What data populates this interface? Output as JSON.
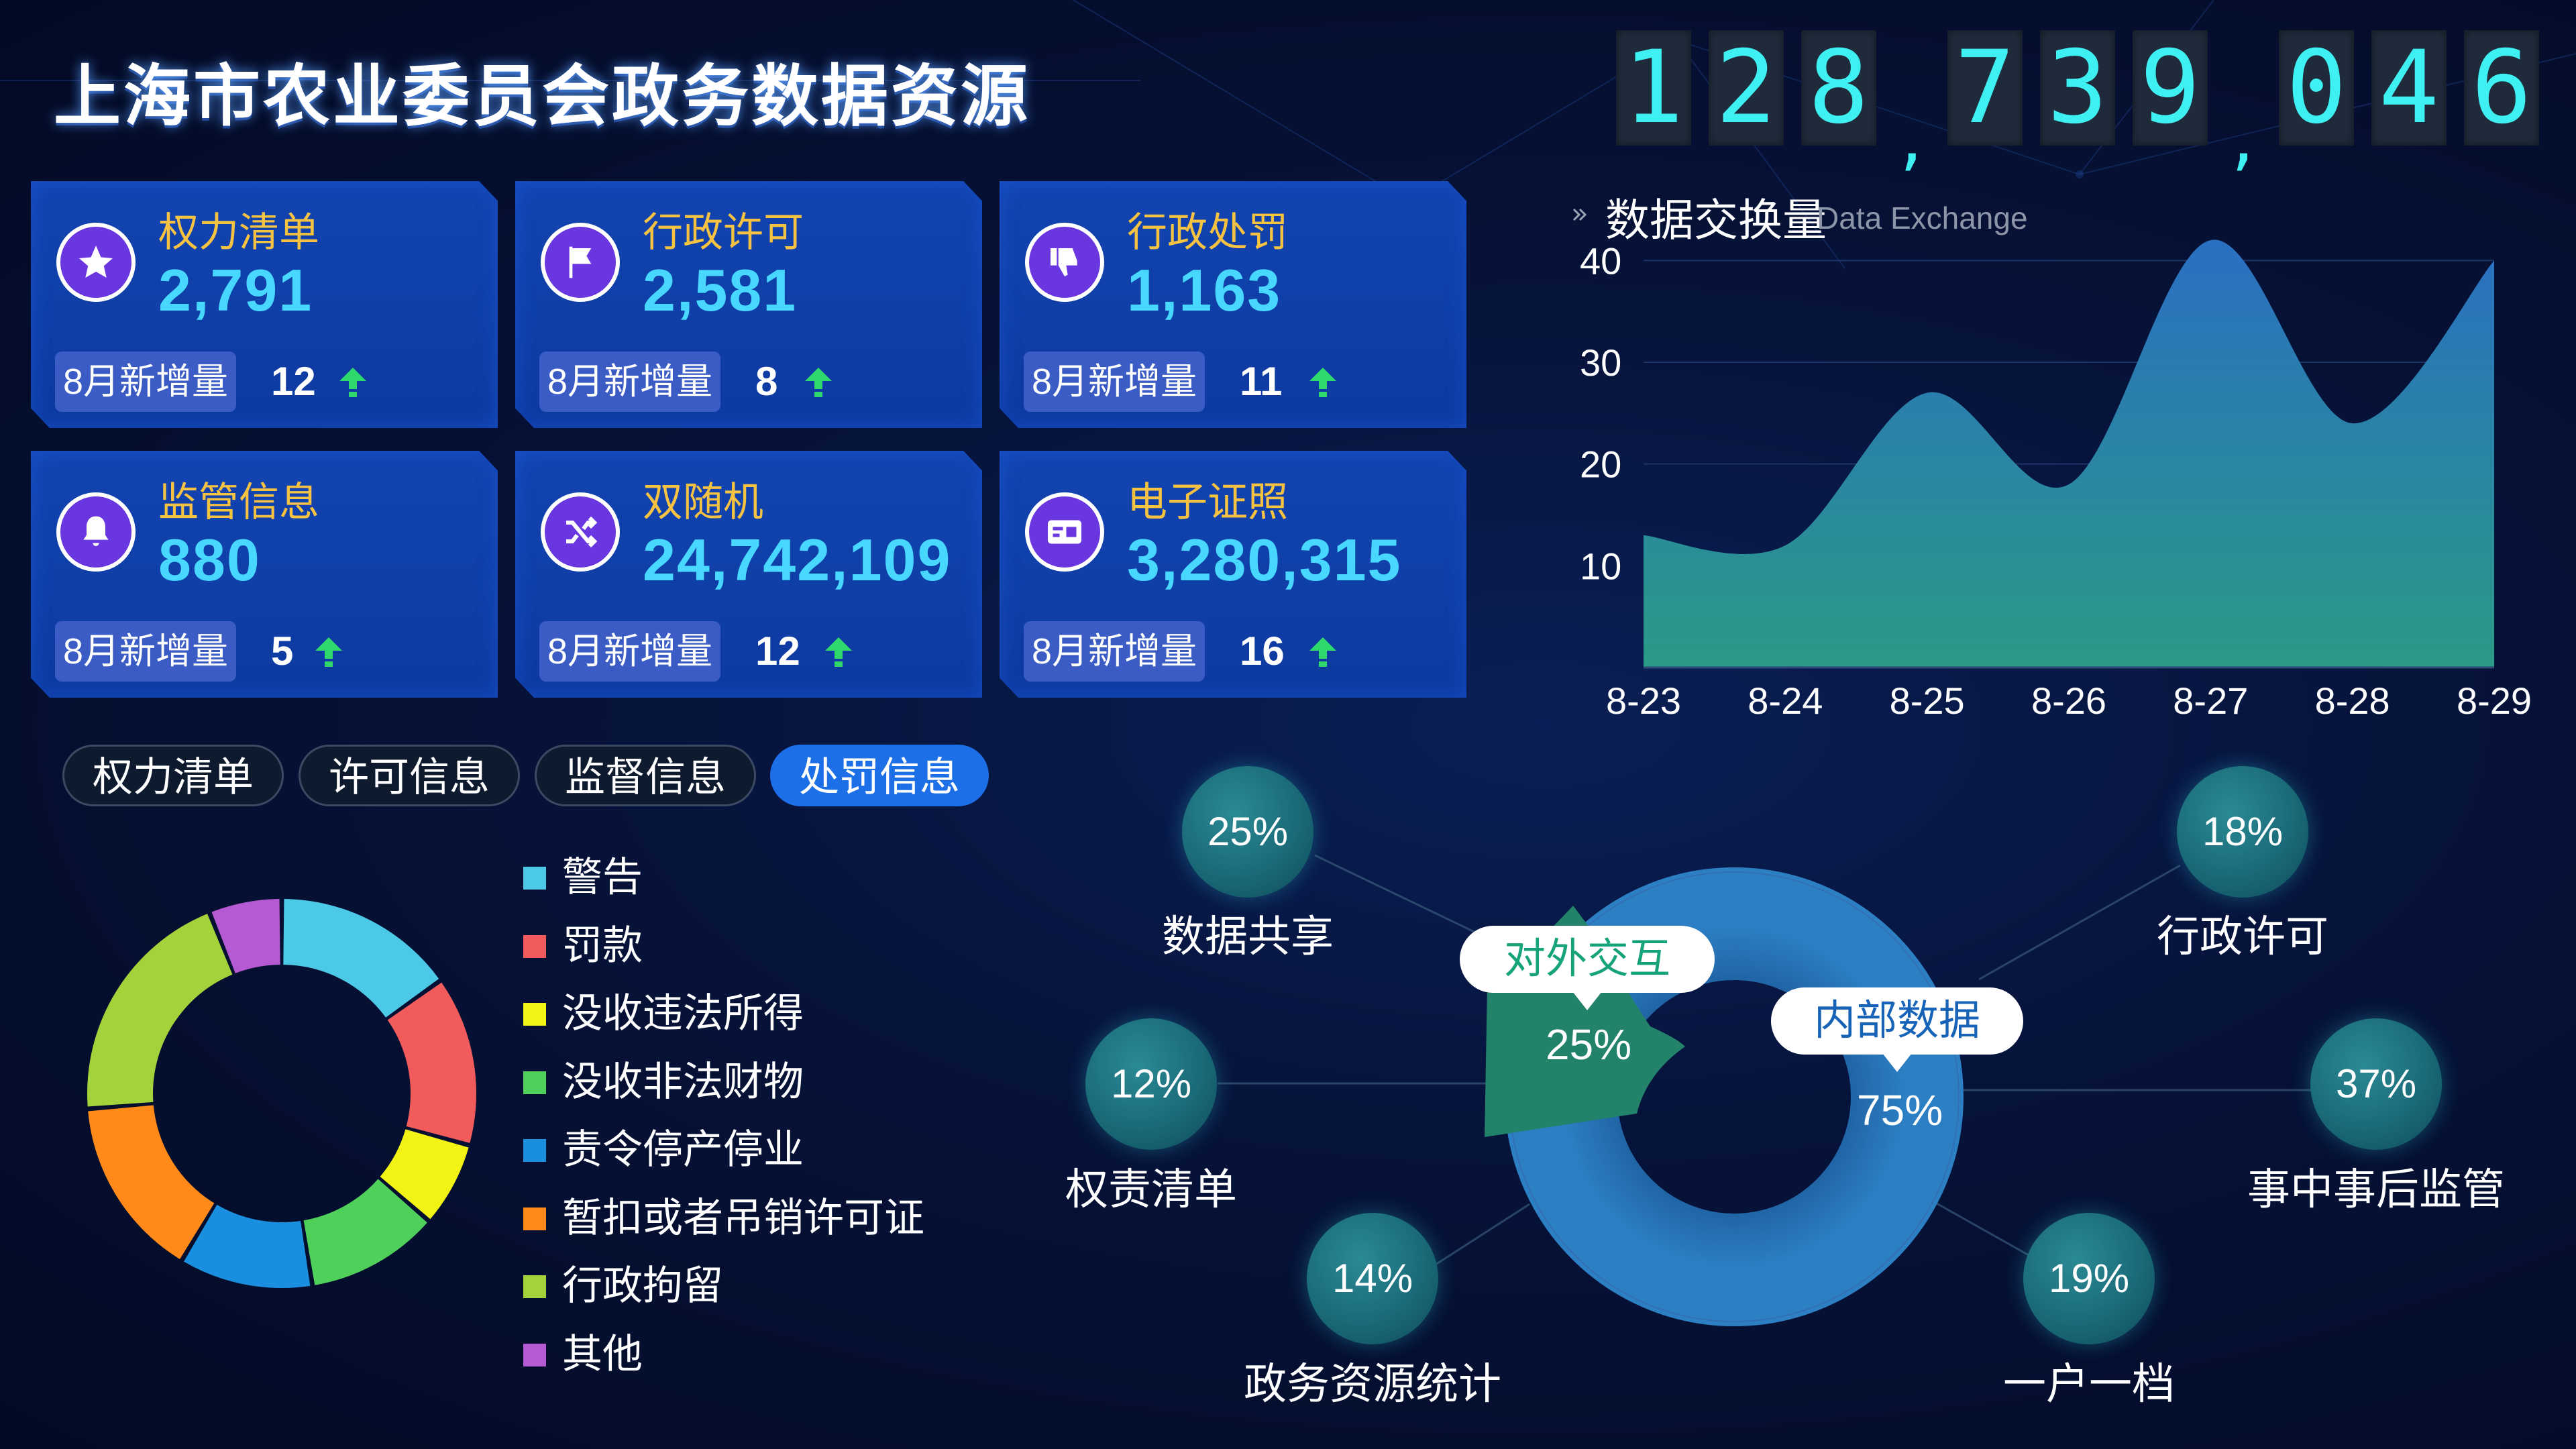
{
  "title": "上海市农业委员会政务数据资源",
  "counter": {
    "groups": [
      [
        "1",
        "2",
        "8"
      ],
      [
        "7",
        "3",
        "9"
      ],
      [
        "0",
        "4",
        "6"
      ]
    ],
    "separator": ","
  },
  "cards": [
    {
      "label": "权力清单",
      "value": "2,791",
      "badge": "8月新增量",
      "delta": "12",
      "icon": "star-icon"
    },
    {
      "label": "行政许可",
      "value": "2,581",
      "badge": "8月新增量",
      "delta": "8",
      "icon": "flag-icon"
    },
    {
      "label": "行政处罚",
      "value": "1,163",
      "badge": "8月新增量",
      "delta": "11",
      "icon": "thumbs-down-icon"
    },
    {
      "label": "监管信息",
      "value": "880",
      "badge": "8月新增量",
      "delta": "5",
      "icon": "bell-icon"
    },
    {
      "label": "双随机",
      "value": "24,742,109",
      "badge": "8月新增量",
      "delta": "12",
      "icon": "shuffle-icon"
    },
    {
      "label": "电子证照",
      "value": "3,280,315",
      "badge": "8月新增量",
      "delta": "16",
      "icon": "id-card-icon"
    }
  ],
  "tabs": [
    "权力清单",
    "许可信息",
    "监督信息",
    "处罚信息"
  ],
  "active_tab": "处罚信息",
  "legend": [
    {
      "label": "警告",
      "color": "#4cc9e6"
    },
    {
      "label": "罚款",
      "color": "#f15b5b"
    },
    {
      "label": "没收违法所得",
      "color": "#f3f215"
    },
    {
      "label": "没收非法财物",
      "color": "#4fd05a"
    },
    {
      "label": "责令停产停业",
      "color": "#1a8fe0"
    },
    {
      "label": "暂扣或者吊销许可证",
      "color": "#ff8a1a"
    },
    {
      "label": "行政拘留",
      "color": "#a4d23b"
    },
    {
      "label": "其他",
      "color": "#b55ad2"
    }
  ],
  "donut_values": [
    15,
    14,
    7,
    11,
    11,
    15,
    20,
    6
  ],
  "chart_title": "数据交换量",
  "chart_subtitle": "Data Exchange",
  "chart_data": {
    "type": "area",
    "categories": [
      "8-23",
      "8-24",
      "8-25",
      "8-26",
      "8-27",
      "8-28",
      "8-29"
    ],
    "values": [
      13,
      12,
      27,
      18,
      42,
      24,
      40
    ],
    "ylim": [
      0,
      42
    ],
    "yticks": [
      "10",
      "20",
      "30",
      "40"
    ],
    "grid": true
  },
  "ring": {
    "external": {
      "label": "对外交互",
      "pct": "25%"
    },
    "internal": {
      "label": "内部数据",
      "pct": "75%"
    }
  },
  "bubbles": [
    {
      "pct": "25%",
      "label": "数据共享"
    },
    {
      "pct": "12%",
      "label": "权责清单"
    },
    {
      "pct": "14%",
      "label": "政务资源统计"
    },
    {
      "pct": "18%",
      "label": "行政许可"
    },
    {
      "pct": "37%",
      "label": "事中事后监管"
    },
    {
      "pct": "19%",
      "label": "一户一档"
    }
  ]
}
